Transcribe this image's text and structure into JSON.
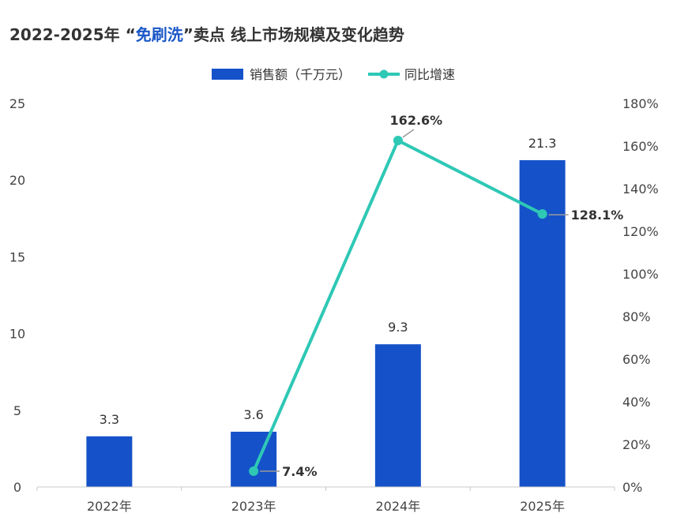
{
  "title_parts": {
    "prefix": "2022-2025年 “",
    "highlight": "免刷洗",
    "suffix": "”卖点 线上市场规模及变化趋势"
  },
  "colors": {
    "bar": "#1552c9",
    "line": "#2ec8b5",
    "highlight_text": "#1a57c8",
    "axis": "#c8c8c8",
    "leader": "#9a9a9a"
  },
  "chart_data": {
    "type": "bar",
    "title": "2022-2025年 “免刷洗”卖点 线上市场规模及变化趋势",
    "categories": [
      "2022年",
      "2023年",
      "2024年",
      "2025年"
    ],
    "series": [
      {
        "name": "销售额（千万元）",
        "type": "bar",
        "axis": "left",
        "values": [
          3.3,
          3.6,
          9.3,
          21.3
        ],
        "labels": [
          "3.3",
          "3.6",
          "9.3",
          "21.3"
        ]
      },
      {
        "name": "同比增速",
        "type": "line",
        "axis": "right",
        "values": [
          null,
          7.4,
          162.6,
          128.1
        ],
        "labels": [
          "",
          "7.4%",
          "162.6%",
          "128.1%"
        ]
      }
    ],
    "y_left": {
      "range": [
        0,
        25
      ],
      "ticks": [
        "0",
        "5",
        "10",
        "15",
        "20",
        "25"
      ]
    },
    "y_right": {
      "range": [
        0,
        180
      ],
      "ticks": [
        "0%",
        "20%",
        "40%",
        "60%",
        "80%",
        "100%",
        "120%",
        "140%",
        "160%",
        "180%"
      ]
    },
    "legend": "top-center",
    "grid": false
  }
}
